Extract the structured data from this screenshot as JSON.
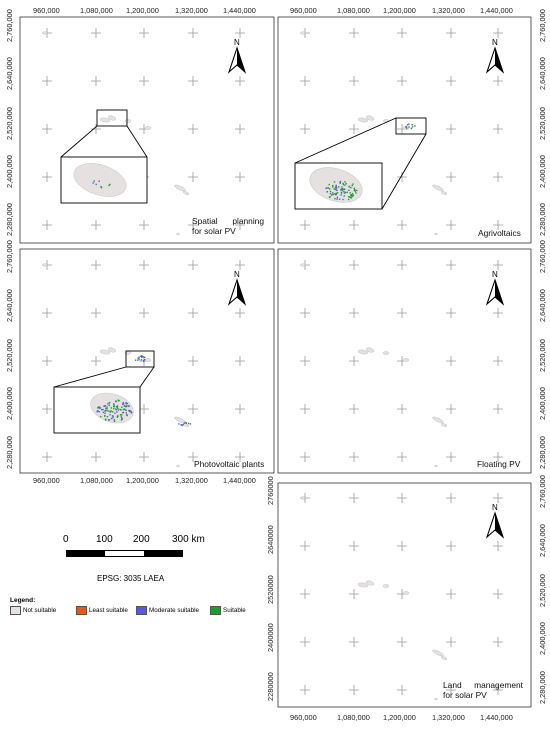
{
  "easting_ticks": [
    "960,000",
    "1,080,000",
    "1,200,000",
    "1,320,000",
    "1,440,000"
  ],
  "northing_ticks": [
    "2,760,000",
    "2,640,000",
    "2,520,000",
    "2,400,000",
    "2,280,000"
  ],
  "northing_ticks_plain": [
    "2760000",
    "2640000",
    "2520000",
    "2400000",
    "2280000"
  ],
  "north_label": "N",
  "panels": {
    "spatial_planning": {
      "title_line1_a": "Spatial",
      "title_line1_b": "planning",
      "title_line2": "for solar PV"
    },
    "agrivoltaics": {
      "title": "Agrivoltaics"
    },
    "photovoltaic_plants": {
      "title": "Photovoltaic plants"
    },
    "floating_pv": {
      "title": "Floating PV"
    },
    "land_management": {
      "title_line1_a": "Land",
      "title_line1_b": "management",
      "title_line2": "for solar PV"
    }
  },
  "scale_bar": {
    "labels": [
      "0",
      "100",
      "200",
      "300 km"
    ]
  },
  "projection": "EPSG: 3035 LAEA",
  "legend": {
    "title": "Legend:",
    "items": [
      {
        "label": "Not suitable",
        "color": "#e6e1e1"
      },
      {
        "label": "Least suitable",
        "color": "#e05a1e"
      },
      {
        "label": "Moderate suitable",
        "color": "#5a5ad8"
      },
      {
        "label": "Suitable",
        "color": "#1f9a2e"
      }
    ]
  }
}
